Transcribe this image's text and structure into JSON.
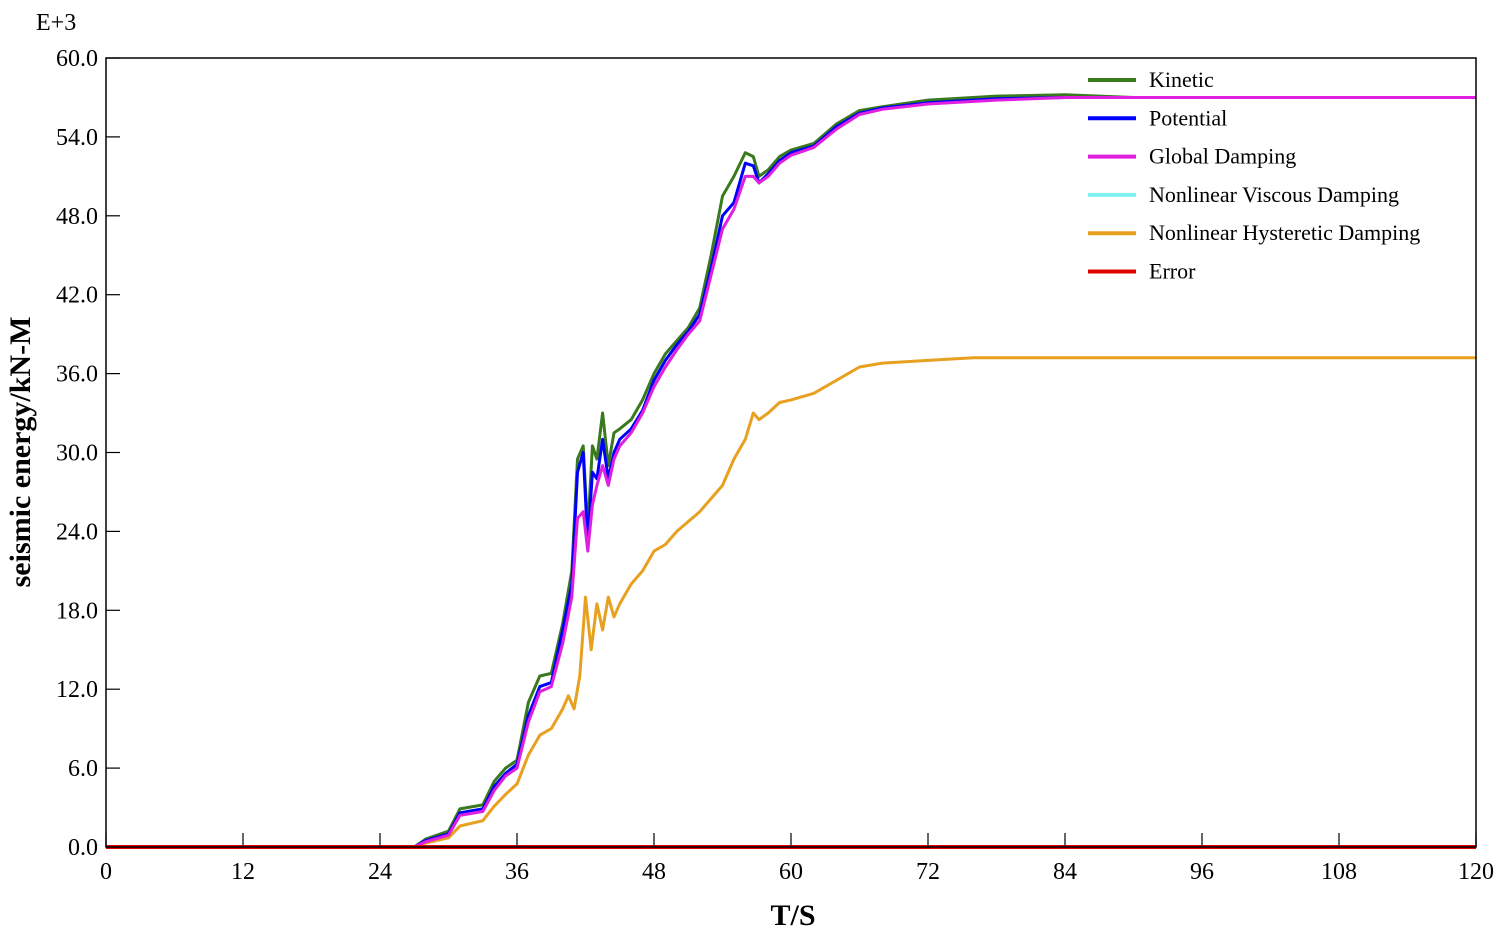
{
  "chart_data": {
    "type": "line",
    "xlabel": "T/S",
    "ylabel": "seismic energy/kN-M",
    "y_exponent_label": "E+3",
    "xlim": [
      0,
      120
    ],
    "ylim": [
      0,
      60
    ],
    "x_ticks": [
      0,
      12,
      24,
      36,
      48,
      60,
      72,
      84,
      96,
      108,
      120
    ],
    "y_ticks": [
      0,
      6,
      12,
      18,
      24,
      30,
      36,
      42,
      48,
      54,
      60
    ],
    "x_tick_labels": [
      "0",
      "12",
      "24",
      "36",
      "48",
      "60",
      "72",
      "84",
      "96",
      "108",
      "120"
    ],
    "y_tick_labels": [
      "0.0",
      "6.0",
      "12.0",
      "18.0",
      "24.0",
      "30.0",
      "36.0",
      "42.0",
      "48.0",
      "54.0",
      "60.0"
    ],
    "grid": false,
    "legend_position": "top-right",
    "series": [
      {
        "name": "Kinetic",
        "color": "#3a7a1e",
        "x": [
          0,
          27,
          28,
          30,
          31,
          33,
          34,
          35,
          36,
          37,
          38,
          39,
          40,
          40.8,
          41.3,
          41.8,
          42.2,
          42.6,
          43.0,
          43.5,
          44.0,
          44.5,
          45.0,
          46,
          47,
          48,
          49,
          50,
          51,
          52,
          53,
          54,
          55,
          56,
          56.7,
          57.2,
          58,
          59,
          60,
          62,
          64,
          66,
          68,
          72,
          78,
          84,
          90,
          120
        ],
        "y": [
          0,
          0,
          0.6,
          1.2,
          2.9,
          3.2,
          5.0,
          6.0,
          6.6,
          11.0,
          13.0,
          13.2,
          17.0,
          21.0,
          29.5,
          30.5,
          24.0,
          30.5,
          29.5,
          33.0,
          29.0,
          31.5,
          31.8,
          32.5,
          34.0,
          36.0,
          37.5,
          38.5,
          39.5,
          41.0,
          45.0,
          49.5,
          51.0,
          52.8,
          52.5,
          51.0,
          51.5,
          52.5,
          53.0,
          53.5,
          55.0,
          56.0,
          56.3,
          56.8,
          57.1,
          57.2,
          57.0,
          57.0
        ]
      },
      {
        "name": "Potential",
        "color": "#0000ff",
        "x": [
          0,
          27,
          28,
          30,
          31,
          33,
          34,
          35,
          36,
          37,
          38,
          39,
          40,
          40.8,
          41.3,
          41.8,
          42.2,
          42.6,
          43.0,
          43.5,
          44.0,
          44.5,
          45.0,
          46,
          47,
          48,
          49,
          50,
          51,
          52,
          53,
          54,
          55,
          56,
          56.7,
          57.2,
          58,
          59,
          60,
          62,
          64,
          66,
          68,
          72,
          78,
          84,
          90,
          120
        ],
        "y": [
          0,
          0,
          0.5,
          1.0,
          2.6,
          2.9,
          4.6,
          5.6,
          6.3,
          10.0,
          12.2,
          12.5,
          16.5,
          20.0,
          28.5,
          30.0,
          23.0,
          28.5,
          28.0,
          31.0,
          28.0,
          30.0,
          31.0,
          31.8,
          33.2,
          35.5,
          37.0,
          38.2,
          39.2,
          40.5,
          44.0,
          48.0,
          49.0,
          52.0,
          51.8,
          50.5,
          51.2,
          52.2,
          52.8,
          53.3,
          54.8,
          55.8,
          56.2,
          56.6,
          56.9,
          57.0,
          57.0,
          57.0
        ]
      },
      {
        "name": "Global Damping",
        "color": "#e020e0",
        "x": [
          0,
          27,
          28,
          30,
          31,
          33,
          34,
          35,
          36,
          37,
          38,
          39,
          40,
          40.8,
          41.3,
          41.8,
          42.2,
          42.6,
          43.0,
          43.5,
          44.0,
          44.5,
          45.0,
          46,
          47,
          48,
          49,
          50,
          51,
          52,
          53,
          54,
          55,
          56,
          56.7,
          57.2,
          58,
          59,
          60,
          62,
          64,
          66,
          68,
          72,
          78,
          84,
          90,
          120
        ],
        "y": [
          0,
          0,
          0.4,
          0.9,
          2.4,
          2.7,
          4.3,
          5.4,
          6.0,
          9.5,
          11.8,
          12.2,
          15.5,
          19.0,
          25.0,
          25.5,
          22.5,
          26.0,
          27.5,
          29.0,
          27.5,
          29.5,
          30.5,
          31.5,
          33.0,
          35.0,
          36.5,
          37.8,
          39.0,
          40.0,
          43.5,
          47.0,
          48.5,
          51.0,
          51.0,
          50.5,
          51.0,
          52.0,
          52.6,
          53.2,
          54.6,
          55.7,
          56.1,
          56.5,
          56.8,
          57.0,
          57.0,
          57.0
        ]
      },
      {
        "name": "Nonlinear Viscous Damping",
        "color": "#80f0f0",
        "x": [
          0,
          120
        ],
        "y": [
          0,
          0
        ]
      },
      {
        "name": "Nonlinear Hysteretic Damping",
        "color": "#e8a020",
        "x": [
          0,
          27,
          28,
          30,
          31,
          33,
          34,
          35,
          36,
          37,
          38,
          39,
          40,
          40.5,
          41.0,
          41.5,
          42.0,
          42.5,
          43.0,
          43.5,
          44.0,
          44.5,
          45,
          46,
          47,
          48,
          49,
          50,
          52,
          54,
          55,
          56,
          56.7,
          57.2,
          58,
          59,
          60,
          62,
          64,
          66,
          68,
          72,
          76,
          120
        ],
        "y": [
          0,
          0,
          0.3,
          0.7,
          1.6,
          2.0,
          3.1,
          4.0,
          4.8,
          7.0,
          8.5,
          9.0,
          10.5,
          11.5,
          10.5,
          13.0,
          19.0,
          15.0,
          18.5,
          16.5,
          19.0,
          17.5,
          18.5,
          20.0,
          21.0,
          22.5,
          23.0,
          24.0,
          25.5,
          27.5,
          29.5,
          31.0,
          33.0,
          32.5,
          33.0,
          33.8,
          34.0,
          34.5,
          35.5,
          36.5,
          36.8,
          37.0,
          37.2,
          37.2
        ]
      },
      {
        "name": "Error",
        "color": "#e00000",
        "x": [
          0,
          120
        ],
        "y": [
          0,
          0
        ]
      }
    ]
  }
}
